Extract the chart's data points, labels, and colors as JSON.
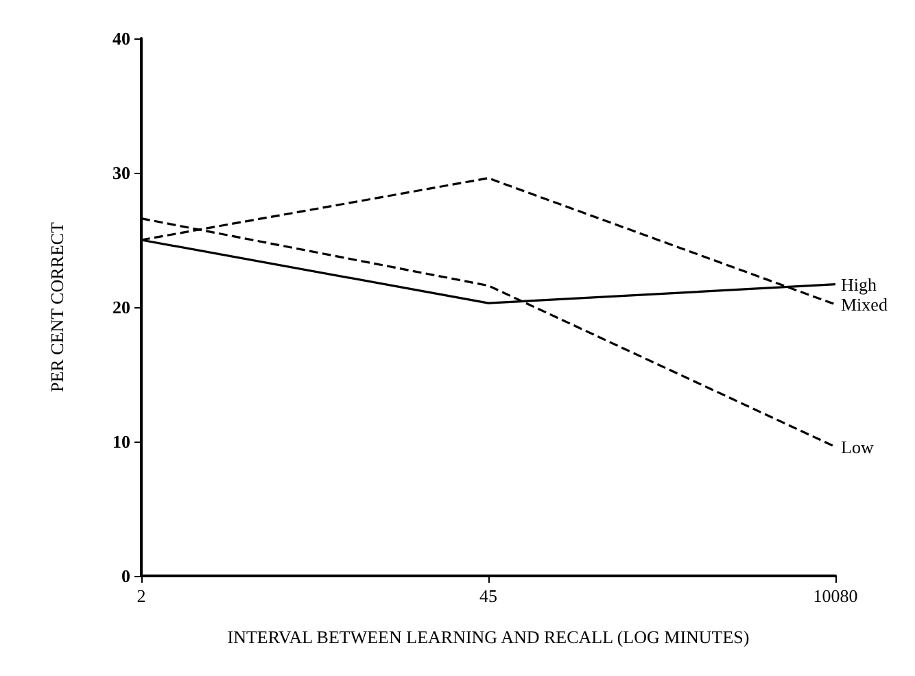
{
  "chart_data": {
    "type": "line",
    "xlabel": "INTERVAL BETWEEN LEARNING AND RECALL (LOG MINUTES)",
    "ylabel": "PER CENT CORRECT",
    "categories": [
      "2",
      "45",
      "10080"
    ],
    "ylim": [
      0,
      40
    ],
    "yticks": [
      0,
      10,
      20,
      30,
      40
    ],
    "grid": false,
    "legend": false,
    "marker": "none",
    "series": [
      {
        "name": "High",
        "color": "#000000",
        "line_style": "solid",
        "values": [
          25,
          20.3,
          21.7
        ]
      },
      {
        "name": "Mixed",
        "color": "#000000",
        "line_style": "dashed",
        "values": [
          25,
          29.6,
          20.2
        ]
      },
      {
        "name": "Low",
        "color": "#000000",
        "line_style": "dashed",
        "values": [
          26.6,
          21.6,
          9.6
        ]
      }
    ]
  }
}
